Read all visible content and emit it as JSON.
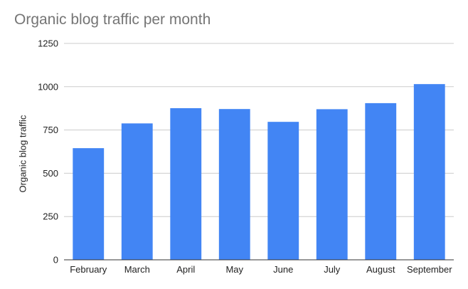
{
  "chart_data": {
    "type": "bar",
    "title": "Organic blog traffic per month",
    "xlabel": "",
    "ylabel": "Organic blog traffic",
    "categories": [
      "February",
      "March",
      "April",
      "May",
      "June",
      "July",
      "August",
      "September"
    ],
    "values": [
      645,
      788,
      876,
      871,
      797,
      870,
      905,
      1015
    ],
    "ylim": [
      0,
      1250
    ],
    "yticks": [
      0,
      250,
      500,
      750,
      1000,
      1250
    ],
    "grid": true,
    "legend": "none",
    "bar_color": "#4285f4",
    "grid_color": "#cccccc",
    "axis_color": "#333333"
  }
}
